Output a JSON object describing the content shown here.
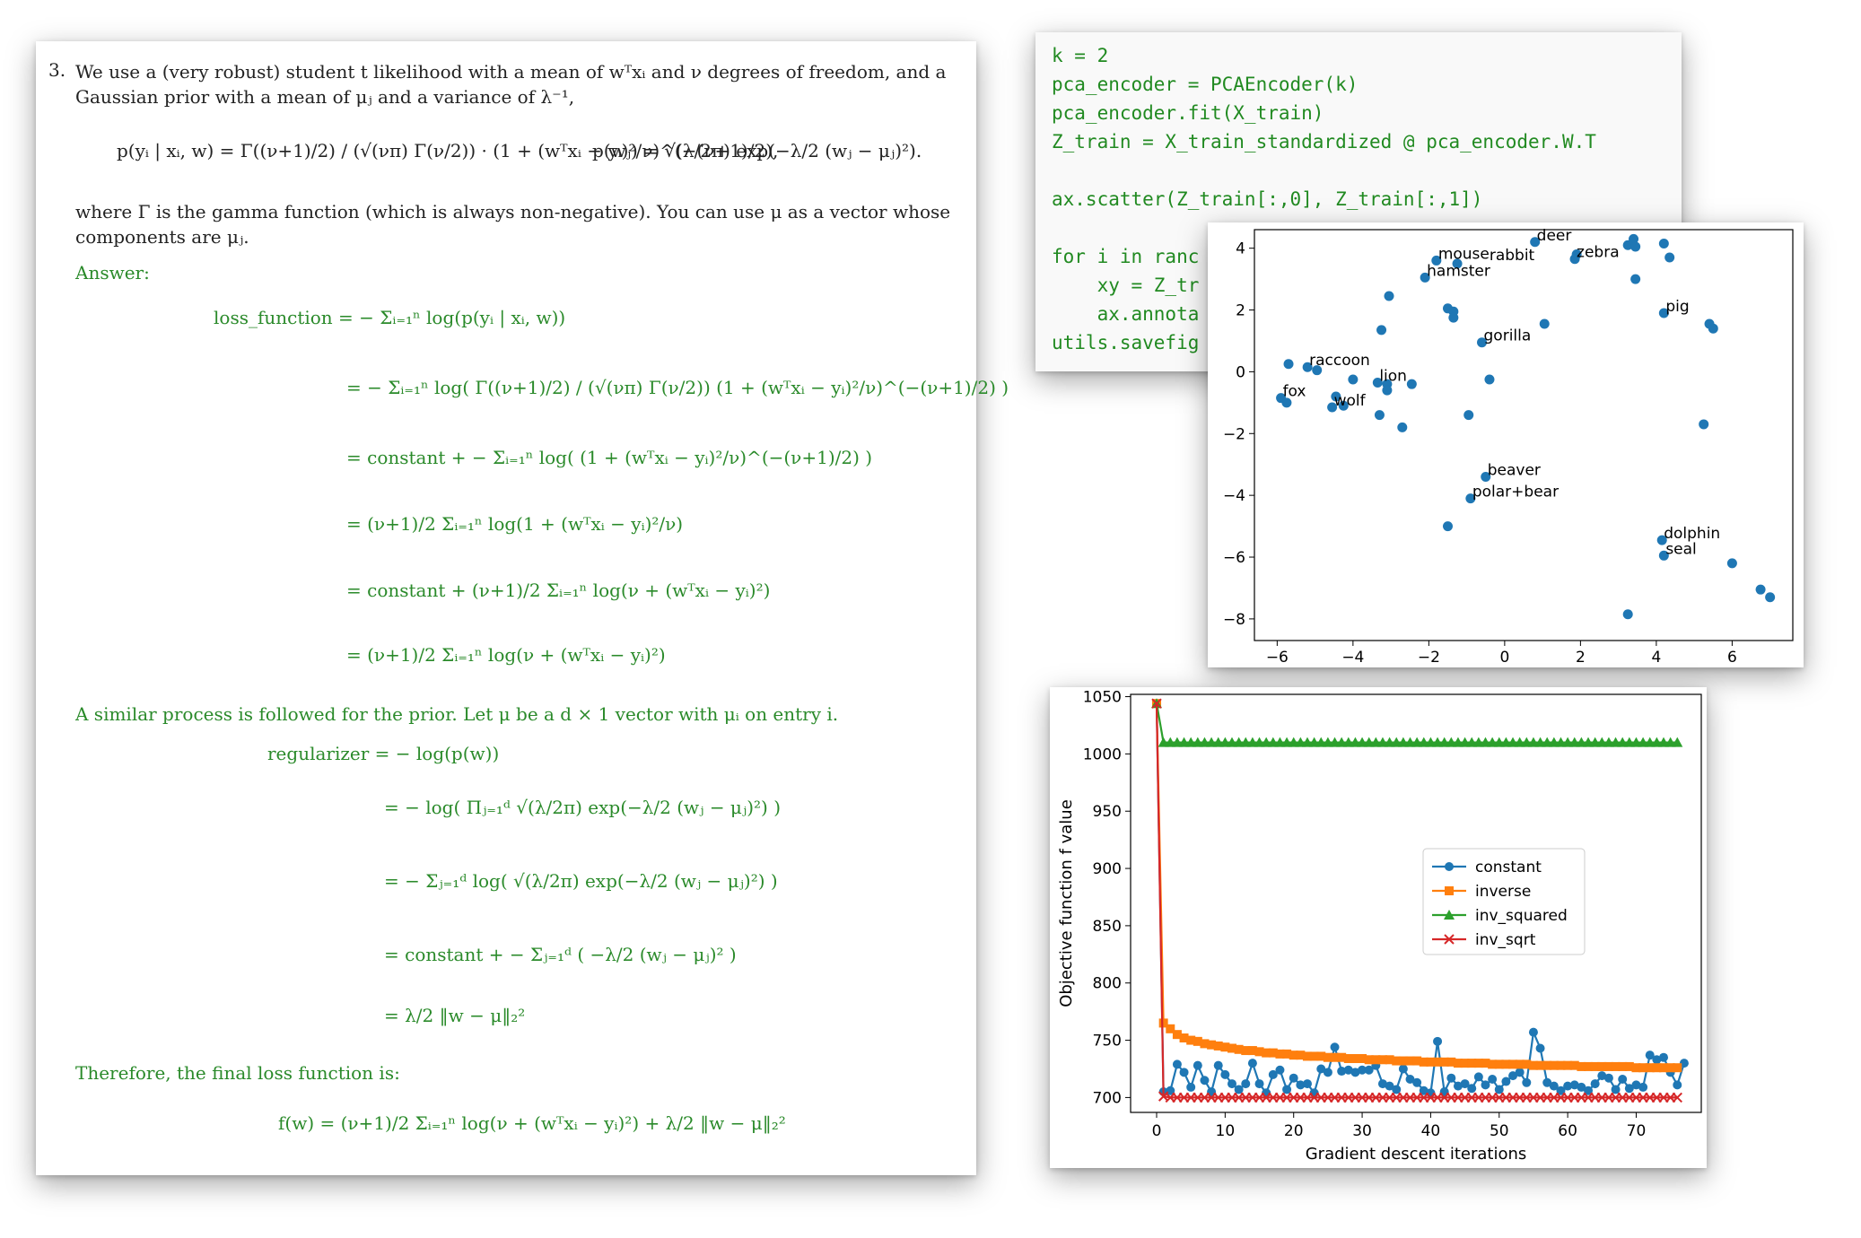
{
  "paper": {
    "item_number": "3.",
    "intro_line1": "We use a (very robust) student t likelihood with a mean of wᵀxᵢ and ν degrees of freedom, and a",
    "intro_line2": "Gaussian prior with a mean of μⱼ and a variance of λ⁻¹,",
    "likelihood_eq": "p(yᵢ | xᵢ, w) = Γ((ν+1)/2) / (√(νπ) Γ(ν/2)) · (1 + (wᵀxᵢ − yᵢ)²/ν)^(−(ν+1)/2),",
    "prior_eq": "p(wⱼ) = √(λ/2π) exp(−λ/2 (wⱼ − μⱼ)²).",
    "gamma_line1": "where Γ is the gamma function (which is always non-negative).  You can use μ as a vector whose",
    "gamma_line2": "components are μⱼ.",
    "answer_label": "Answer:",
    "loss_lines": [
      "loss_function = − Σᵢ₌₁ⁿ log(p(yᵢ | xᵢ, w))",
      "= − Σᵢ₌₁ⁿ log( Γ((ν+1)/2) / (√(νπ) Γ(ν/2)) (1 + (wᵀxᵢ − yᵢ)²/ν)^(−(ν+1)/2) )",
      "= constant + − Σᵢ₌₁ⁿ log( (1 + (wᵀxᵢ − yᵢ)²/ν)^(−(ν+1)/2) )",
      "= (ν+1)/2 Σᵢ₌₁ⁿ log(1 + (wᵀxᵢ − yᵢ)²/ν)",
      "= constant + (ν+1)/2 Σᵢ₌₁ⁿ log(ν + (wᵀxᵢ − yᵢ)²)",
      "= (ν+1)/2 Σᵢ₌₁ⁿ log(ν + (wᵀxᵢ − yᵢ)²)"
    ],
    "prior_text": "A similar process is followed for the prior. Let μ be a d × 1 vector with μᵢ on entry i.",
    "reg_lines": [
      "regularizer = − log(p(w))",
      "= − log( Πⱼ₌₁ᵈ √(λ/2π) exp(−λ/2 (wⱼ − μⱼ)²) )",
      "= − Σⱼ₌₁ᵈ log( √(λ/2π) exp(−λ/2 (wⱼ − μⱼ)²) )",
      "= constant + − Σⱼ₌₁ᵈ ( −λ/2 (wⱼ − μⱼ)² )",
      "= λ/2 ‖w − μ‖₂²"
    ],
    "final_text": "Therefore, the final loss function is:",
    "final_eq": "f(w) = (ν+1)/2 Σᵢ₌₁ⁿ log(ν + (wᵀxᵢ − yᵢ)²) + λ/2 ‖w − μ‖₂²"
  },
  "code": {
    "lines": [
      "k = 2",
      "pca_encoder = PCAEncoder(k)",
      "pca_encoder.fit(X_train)",
      "Z_train = X_train_standardized @ pca_encoder.W.T",
      "",
      "ax.scatter(Z_train[:,0], Z_train[:,1])",
      "",
      "for i in ranc",
      "    xy = Z_tr",
      "    ax.annota",
      "utils.savefig"
    ]
  },
  "chart_data": [
    {
      "type": "scatter",
      "title": "",
      "xlabel": "",
      "ylabel": "",
      "xlim": [
        -6.6,
        7.6
      ],
      "ylim": [
        -8.7,
        4.6
      ],
      "xticks": [
        -6,
        -4,
        -2,
        0,
        2,
        4,
        6
      ],
      "yticks": [
        4,
        2,
        0,
        -2,
        -4,
        -6,
        -8
      ],
      "color": "#1f77b4",
      "points": [
        [
          0.8,
          4.2
        ],
        [
          1.9,
          3.8
        ],
        [
          1.85,
          3.65
        ],
        [
          3.4,
          4.3
        ],
        [
          3.25,
          4.1
        ],
        [
          3.45,
          4.05
        ],
        [
          4.2,
          4.15
        ],
        [
          4.35,
          3.7
        ],
        [
          3.45,
          3.0
        ],
        [
          -1.8,
          3.6
        ],
        [
          -1.25,
          3.5
        ],
        [
          -2.1,
          3.05
        ],
        [
          -3.05,
          2.45
        ],
        [
          -1.5,
          2.05
        ],
        [
          -1.35,
          1.95
        ],
        [
          -1.35,
          1.75
        ],
        [
          4.2,
          1.9
        ],
        [
          5.4,
          1.55
        ],
        [
          5.5,
          1.4
        ],
        [
          1.05,
          1.55
        ],
        [
          -3.25,
          1.35
        ],
        [
          -0.6,
          0.95
        ],
        [
          -5.7,
          0.25
        ],
        [
          -5.2,
          0.15
        ],
        [
          -4.95,
          0.05
        ],
        [
          -4.0,
          -0.25
        ],
        [
          -3.35,
          -0.35
        ],
        [
          -3.1,
          -0.4
        ],
        [
          -3.1,
          -0.6
        ],
        [
          -2.45,
          -0.4
        ],
        [
          -0.4,
          -0.25
        ],
        [
          -5.9,
          -0.85
        ],
        [
          -5.75,
          -1.0
        ],
        [
          -4.45,
          -0.8
        ],
        [
          -4.55,
          -1.15
        ],
        [
          -4.25,
          -1.1
        ],
        [
          -3.3,
          -1.4
        ],
        [
          -0.95,
          -1.4
        ],
        [
          -2.7,
          -1.8
        ],
        [
          5.25,
          -1.7
        ],
        [
          -0.5,
          -3.4
        ],
        [
          -0.9,
          -4.1
        ],
        [
          -1.5,
          -5.0
        ],
        [
          4.15,
          -5.45
        ],
        [
          4.2,
          -5.95
        ],
        [
          6.0,
          -6.2
        ],
        [
          6.75,
          -7.05
        ],
        [
          7.0,
          -7.3
        ],
        [
          3.25,
          -7.85
        ]
      ],
      "annotations": [
        {
          "text": "deer",
          "x": 0.8,
          "y": 4.2
        },
        {
          "text": "zebra",
          "x": 1.85,
          "y": 3.65
        },
        {
          "text": "mouse",
          "x": -1.8,
          "y": 3.6
        },
        {
          "text": "rabbit",
          "x": -0.45,
          "y": 3.55
        },
        {
          "text": "hamster",
          "x": -2.1,
          "y": 3.05
        },
        {
          "text": "pig",
          "x": 4.2,
          "y": 1.9
        },
        {
          "text": "gorilla",
          "x": -0.6,
          "y": 0.95
        },
        {
          "text": "raccoon",
          "x": -5.2,
          "y": 0.15
        },
        {
          "text": "lion",
          "x": -3.35,
          "y": -0.35
        },
        {
          "text": "fox",
          "x": -5.9,
          "y": -0.85
        },
        {
          "text": "wolf",
          "x": -4.55,
          "y": -1.15
        },
        {
          "text": "beaver",
          "x": -0.5,
          "y": -3.4
        },
        {
          "text": "polar+bear",
          "x": -0.9,
          "y": -4.1
        },
        {
          "text": "dolphin",
          "x": 4.15,
          "y": -5.45
        },
        {
          "text": "seal",
          "x": 4.2,
          "y": -5.95
        }
      ]
    },
    {
      "type": "line",
      "xlabel": "Gradient descent iterations",
      "ylabel": "Objective function f value",
      "xlim": [
        -3.8,
        79.5
      ],
      "ylim": [
        687,
        1052
      ],
      "xticks": [
        0,
        10,
        20,
        30,
        40,
        50,
        60,
        70
      ],
      "yticks": [
        700,
        750,
        800,
        850,
        900,
        950,
        1000,
        1050
      ],
      "legend_position": "right",
      "series": [
        {
          "name": "constant",
          "color": "#1f77b4",
          "marker": "circle",
          "values": [
            1044,
            705,
            706,
            729,
            722,
            709,
            728,
            715,
            705,
            728,
            720,
            712,
            707,
            712,
            730,
            712,
            704,
            720,
            724,
            707,
            717,
            711,
            712,
            704,
            725,
            722,
            744,
            723,
            724,
            722,
            724,
            724,
            728,
            712,
            710,
            707,
            725,
            716,
            713,
            706,
            704,
            749,
            705,
            717,
            710,
            712,
            708,
            718,
            711,
            716,
            707,
            714,
            719,
            722,
            713,
            757,
            743,
            713,
            710,
            706,
            710,
            711,
            709,
            706,
            712,
            719,
            717,
            707,
            716,
            708,
            711,
            709,
            737,
            733,
            735,
            722,
            711,
            730
          ]
        },
        {
          "name": "inverse",
          "color": "#ff7f0e",
          "marker": "square",
          "values": [
            1044,
            765,
            760,
            755,
            752,
            750,
            749,
            747,
            746,
            745,
            744,
            743,
            742,
            741,
            741,
            740,
            739,
            739,
            738,
            738,
            737,
            737,
            736,
            736,
            736,
            735,
            735,
            735,
            734,
            734,
            734,
            733,
            733,
            733,
            733,
            732,
            732,
            732,
            732,
            731,
            731,
            731,
            731,
            731,
            730,
            730,
            730,
            730,
            730,
            729,
            729,
            729,
            729,
            729,
            729,
            728,
            728,
            728,
            728,
            728,
            728,
            728,
            727,
            727,
            727,
            727,
            727,
            727,
            727,
            727,
            726,
            726,
            726,
            726,
            726,
            726,
            726
          ]
        },
        {
          "name": "inv_squared",
          "color": "#2ca02c",
          "marker": "triangle",
          "values": [
            1044,
            1010,
            1010,
            1010,
            1010,
            1010,
            1010,
            1010,
            1010,
            1010,
            1010,
            1010,
            1010,
            1010,
            1010,
            1010,
            1010,
            1010,
            1010,
            1010,
            1010,
            1010,
            1010,
            1010,
            1010,
            1010,
            1010,
            1010,
            1010,
            1010,
            1010,
            1010,
            1010,
            1010,
            1010,
            1010,
            1010,
            1010,
            1010,
            1010,
            1010,
            1010,
            1010,
            1010,
            1010,
            1010,
            1010,
            1010,
            1010,
            1010,
            1010,
            1010,
            1010,
            1010,
            1010,
            1010,
            1010,
            1010,
            1010,
            1010,
            1010,
            1010,
            1010,
            1010,
            1010,
            1010,
            1010,
            1010,
            1010,
            1010,
            1010,
            1010,
            1010,
            1010,
            1010,
            1010,
            1010
          ]
        },
        {
          "name": "inv_sqrt",
          "color": "#d62728",
          "marker": "x",
          "values": [
            1044,
            701,
            700,
            700,
            700,
            700,
            700,
            700,
            700,
            700,
            700,
            700,
            700,
            700,
            700,
            700,
            700,
            700,
            700,
            700,
            700,
            700,
            700,
            700,
            700,
            700,
            700,
            700,
            700,
            700,
            700,
            700,
            700,
            700,
            700,
            700,
            700,
            700,
            700,
            700,
            700,
            700,
            700,
            700,
            700,
            700,
            700,
            700,
            700,
            700,
            700,
            700,
            700,
            700,
            700,
            700,
            700,
            700,
            700,
            700,
            700,
            700,
            700,
            700,
            700,
            700,
            700,
            700,
            700,
            700,
            700,
            700,
            700,
            700,
            700,
            700,
            700
          ]
        }
      ]
    }
  ]
}
